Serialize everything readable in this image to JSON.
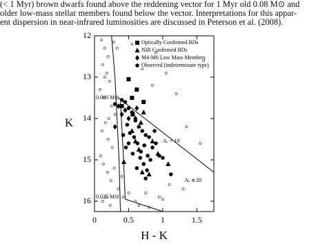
{
  "caption": [
    "(< 1 Myr) brown dwarfs found above the reddening vector for 1 Myr old 0.08 M⊙ and",
    "older low-mass stellar members found below the vector. Interpretations for this appar-",
    "ent dispersion in near-infrared luminosities are discussed in Peterson et al. (2008)."
  ],
  "chart_data": {
    "type": "scatter",
    "x_label": "H - K",
    "y_label": "K",
    "xlim": [
      0,
      1.75
    ],
    "ylim": [
      16.25,
      12
    ],
    "xticks": [
      0,
      0.5,
      1,
      1.5
    ],
    "yticks": [
      12,
      13,
      14,
      15,
      16
    ],
    "legend": "top-right",
    "series": [
      {
        "name": "Optically Confirmed BDs",
        "marker": "square",
        "color": "#000",
        "x": [
          0.5,
          0.55,
          0.72,
          0.56,
          0.4,
          0.62
        ],
        "y": [
          13.05,
          13.5,
          13.6,
          13.9,
          13.7,
          13.3
        ]
      },
      {
        "name": "NIR Confirmed BDs",
        "marker": "triangle",
        "color": "#000",
        "x": [
          0.68,
          0.85,
          0.93,
          0.65,
          0.7,
          0.8,
          1.08,
          0.43,
          0.55,
          0.72,
          0.6
        ],
        "y": [
          14.1,
          14.55,
          14.85,
          14.75,
          15.3,
          15.35,
          15.1,
          15.05,
          14.3,
          13.85,
          14.55
        ]
      },
      {
        "name": "M4-M6 Low Mass Members",
        "marker": "diamond",
        "color": "#000",
        "x": [
          0.35,
          0.45,
          0.5,
          0.6,
          0.3,
          0.4,
          0.62
        ],
        "y": [
          13.7,
          13.8,
          14.0,
          14.0,
          14.2,
          13.9,
          13.75
        ]
      },
      {
        "name": "Observed (indeterminate type)",
        "marker": "circle",
        "color": "#000",
        "x": [
          0.3,
          0.4,
          0.45,
          0.5,
          0.55,
          0.6,
          0.65,
          0.7,
          0.75,
          0.8,
          0.85,
          0.9,
          0.95,
          1.0,
          0.48,
          0.52,
          0.58,
          0.63,
          0.68,
          0.73,
          0.78,
          0.82,
          0.88,
          0.62,
          0.67,
          0.72,
          0.77,
          0.5,
          0.56,
          0.42,
          0.46,
          0.75,
          1.12
        ],
        "y": [
          13.65,
          13.55,
          13.6,
          13.75,
          13.85,
          14.05,
          14.2,
          14.3,
          14.4,
          14.45,
          14.7,
          14.6,
          14.9,
          14.95,
          14.15,
          14.35,
          14.45,
          14.6,
          14.8,
          14.65,
          14.9,
          15.0,
          14.3,
          15.2,
          14.95,
          15.1,
          15.25,
          14.6,
          14.85,
          14.4,
          14.7,
          15.45,
          15.35
        ]
      },
      {
        "marker": "open",
        "color": "#555",
        "x": [
          0.1,
          0.15,
          0.2,
          0.12,
          0.18,
          0.22,
          0.08,
          0.14,
          0.25,
          0.3,
          0.16,
          0.11,
          0.2,
          0.26,
          0.09,
          0.13,
          0.19,
          0.24,
          0.35,
          0.42,
          0.6,
          0.75,
          0.95,
          1.1,
          1.3,
          1.45,
          1.6,
          1.2,
          1.05,
          0.9,
          0.55,
          0.7,
          0.85,
          1.35,
          1.55,
          0.17,
          0.23,
          0.29,
          0.12,
          0.21,
          0.33,
          0.5,
          0.65,
          0.8,
          1.0,
          0.4,
          0.28,
          0.15
        ],
        "y": [
          12.1,
          12.3,
          12.5,
          12.7,
          12.9,
          13.1,
          13.3,
          13.5,
          13.7,
          13.9,
          14.1,
          14.3,
          14.5,
          14.7,
          14.9,
          15.1,
          15.3,
          15.5,
          15.7,
          15.9,
          16.0,
          15.8,
          15.9,
          15.6,
          15.7,
          15.5,
          12.6,
          13.4,
          12.9,
          12.4,
          12.2,
          12.8,
          13.2,
          14.2,
          14.6,
          15.9,
          16.1,
          15.2,
          16.0,
          14.0,
          12.3,
          15.8,
          16.1,
          16.15,
          15.95,
          15.4,
          12.15,
          13.0
        ]
      }
    ],
    "lines": [
      {
        "x": [
          0.25,
          0.3,
          0.33,
          0.36,
          0.38
        ],
        "y": [
          12,
          13,
          14,
          15,
          16.25
        ]
      },
      {
        "x": [
          0.38,
          0.42,
          0.45
        ],
        "y": [
          13.6,
          14.8,
          15.95
        ]
      },
      {
        "x": [
          0.35,
          1.75
        ],
        "y": [
          13.5,
          15.3
        ]
      },
      {
        "x": [
          0.45,
          1.0
        ],
        "y": [
          15.95,
          16.25
        ]
      }
    ],
    "annotations": [
      {
        "text": "0.080 M⊙",
        "x": 0.02,
        "y": 13.5
      },
      {
        "text": "Aᵥ = 10",
        "x": 1.0,
        "y": 14.55
      },
      {
        "text": "Aᵥ = 20",
        "x": 1.32,
        "y": 15.5
      },
      {
        "text": "0.025 M⊙",
        "x": 0.02,
        "y": 15.9
      }
    ]
  }
}
